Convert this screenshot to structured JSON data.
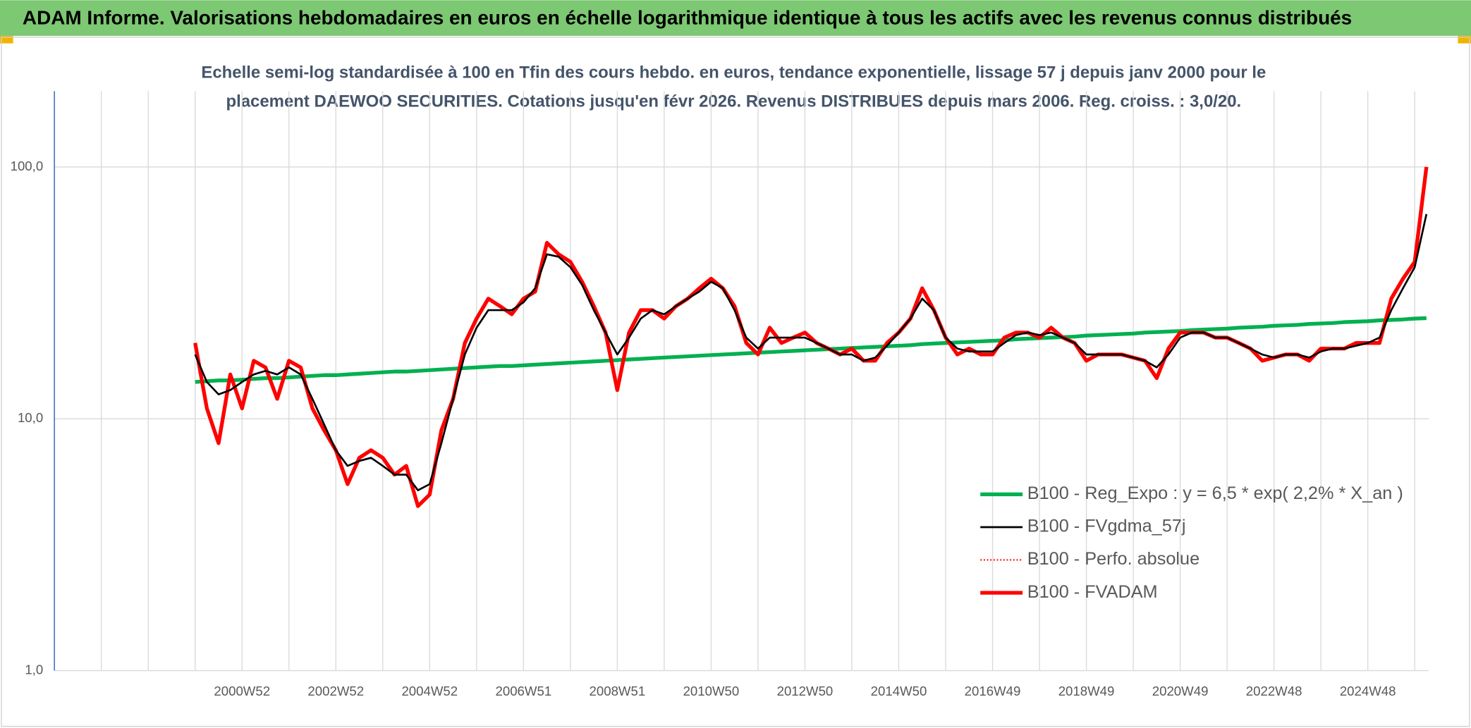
{
  "chart_data": {
    "type": "line",
    "title": "ADAM Informe. Valorisations hebdomadaires en euros en échelle logarithmique identique à tous les actifs avec les revenus connus distribués",
    "subtitle": [
      "Echelle semi-log standardisée à 100 en Tfin des cours hebdo. en euros, tendance exponentielle, lissage 57 j depuis janv 2000 pour le",
      "placement DAEWOO SECURITIES. Cotations jusqu'en févr 2026. Revenus DISTRIBUES depuis mars 2006. Reg. croiss. : 3,0/20."
    ],
    "categories": [
      null,
      null,
      null,
      null,
      "2000W52",
      null,
      null,
      null,
      null,
      null,
      null,
      null,
      "2002W52",
      null,
      null,
      null,
      null,
      null,
      null,
      null,
      "2004W52",
      null,
      null,
      null,
      null,
      null,
      null,
      null,
      "2006W51",
      null,
      null,
      null,
      null,
      null,
      null,
      null,
      "2008W51",
      null,
      null,
      null,
      null,
      null,
      null,
      null,
      "2010W50",
      null,
      null,
      null,
      null,
      null,
      null,
      null,
      "2012W50",
      null,
      null,
      null,
      null,
      null,
      null,
      null,
      "2014W50",
      null,
      null,
      null,
      null,
      null,
      null,
      null,
      "2016W49",
      null,
      null,
      null,
      null,
      null,
      null,
      null,
      "2018W49",
      null,
      null,
      null,
      null,
      null,
      null,
      null,
      "2020W49",
      null,
      null,
      null,
      null,
      null,
      null,
      null,
      "2022W48",
      null,
      null,
      null,
      null,
      null,
      null,
      null,
      "2024W48",
      null,
      null,
      null,
      null,
      null
    ],
    "log_scale": true,
    "ylim": [
      1,
      200
    ],
    "yticks": [
      {
        "value": 1,
        "label": "1,0"
      },
      {
        "value": 10,
        "label": "10,0"
      },
      {
        "value": 100,
        "label": "100,0"
      }
    ],
    "grid": true,
    "legend": "center-right",
    "series": [
      {
        "name": "B100 - Reg_Expo : y = 6,5 * exp( 2,2% *  X_an )",
        "color": "#00b050",
        "style": "thick",
        "values": [
          14.0,
          14.1,
          14.2,
          14.2,
          14.3,
          14.4,
          14.5,
          14.5,
          14.6,
          14.7,
          14.8,
          14.9,
          14.9,
          15.0,
          15.1,
          15.2,
          15.3,
          15.4,
          15.4,
          15.5,
          15.6,
          15.7,
          15.8,
          15.9,
          16.0,
          16.1,
          16.2,
          16.2,
          16.3,
          16.4,
          16.5,
          16.6,
          16.7,
          16.8,
          16.9,
          17.0,
          17.1,
          17.2,
          17.3,
          17.4,
          17.5,
          17.6,
          17.7,
          17.8,
          17.9,
          18.0,
          18.1,
          18.2,
          18.3,
          18.4,
          18.5,
          18.6,
          18.7,
          18.8,
          18.9,
          19.0,
          19.1,
          19.2,
          19.3,
          19.4,
          19.5,
          19.6,
          19.8,
          19.9,
          20.0,
          20.1,
          20.2,
          20.3,
          20.4,
          20.5,
          20.7,
          20.8,
          20.9,
          21.0,
          21.1,
          21.2,
          21.4,
          21.5,
          21.6,
          21.7,
          21.8,
          22.0,
          22.1,
          22.2,
          22.3,
          22.5,
          22.6,
          22.7,
          22.8,
          23.0,
          23.1,
          23.2,
          23.4,
          23.5,
          23.6,
          23.8,
          23.9,
          24.0,
          24.2,
          24.3,
          24.4,
          24.6,
          24.7,
          24.8,
          25.0,
          25.1
        ]
      },
      {
        "name": "B100 - FVgdma_57j",
        "color": "#000000",
        "style": "thin",
        "values": [
          18,
          14,
          12.5,
          13,
          14,
          15,
          15.5,
          15,
          16,
          15,
          12,
          9.5,
          7.5,
          6.5,
          6.8,
          7,
          6.5,
          6,
          6,
          5.2,
          5.5,
          8,
          12,
          18,
          23,
          27,
          27,
          27,
          29,
          33,
          45,
          44,
          40,
          34,
          27,
          22,
          18,
          21,
          25,
          27,
          26,
          28,
          30,
          32,
          35,
          33,
          27,
          21,
          19,
          21,
          21,
          21,
          21,
          20,
          19,
          18,
          18,
          17,
          17.5,
          19.5,
          22,
          25,
          30,
          27,
          21,
          19,
          18.5,
          18.5,
          18.5,
          20,
          21.5,
          22,
          21.5,
          22,
          21,
          20,
          18,
          18,
          18,
          18,
          17.5,
          17,
          16,
          18,
          21,
          22,
          22,
          21,
          21,
          20,
          19,
          18,
          17.5,
          18,
          18,
          17.5,
          18.5,
          19,
          19,
          19.5,
          20,
          21,
          27,
          33,
          40,
          65
        ]
      },
      {
        "name": "B100 - Perfo. absolue",
        "color": "#ff0000",
        "style": "dotted",
        "values": [
          20,
          11,
          8,
          15,
          11,
          17,
          16,
          12,
          17,
          16,
          11,
          9,
          7.5,
          5.5,
          7,
          7.5,
          7,
          6,
          6.5,
          4.5,
          5,
          9,
          12,
          20,
          25,
          30,
          28,
          26,
          30,
          32,
          50,
          45,
          42,
          35,
          28,
          22,
          13,
          22,
          27,
          27,
          25,
          28,
          30,
          33,
          36,
          33,
          28,
          20,
          18,
          23,
          20,
          21,
          22,
          20,
          19,
          18,
          19,
          17,
          17,
          20,
          22,
          25,
          33,
          27,
          21,
          18,
          19,
          18,
          18,
          21,
          22,
          22,
          21,
          23,
          21,
          20,
          17,
          18,
          18,
          18,
          17.5,
          17,
          14.5,
          19,
          22,
          22,
          22,
          21,
          21,
          20,
          19,
          17,
          17.5,
          18,
          18,
          17,
          19,
          19,
          19,
          20,
          20,
          20,
          30,
          36,
          42,
          100
        ]
      },
      {
        "name": "B100 - FVADAM",
        "color": "#ff0000",
        "style": "thick",
        "values": [
          20,
          11,
          8,
          15,
          11,
          17,
          16,
          12,
          17,
          16,
          11,
          9,
          7.5,
          5.5,
          7,
          7.5,
          7,
          6,
          6.5,
          4.5,
          5,
          9,
          12,
          20,
          25,
          30,
          28,
          26,
          30,
          32,
          50,
          45,
          42,
          35,
          28,
          22,
          13,
          22,
          27,
          27,
          25,
          28,
          30,
          33,
          36,
          33,
          28,
          20,
          18,
          23,
          20,
          21,
          22,
          20,
          19,
          18,
          19,
          17,
          17,
          20,
          22,
          25,
          33,
          27,
          21,
          18,
          19,
          18,
          18,
          21,
          22,
          22,
          21,
          23,
          21,
          20,
          17,
          18,
          18,
          18,
          17.5,
          17,
          14.5,
          19,
          22,
          22,
          22,
          21,
          21,
          20,
          19,
          17,
          17.5,
          18,
          18,
          17,
          19,
          19,
          19,
          20,
          20,
          20,
          30,
          36,
          42,
          100
        ]
      }
    ]
  }
}
